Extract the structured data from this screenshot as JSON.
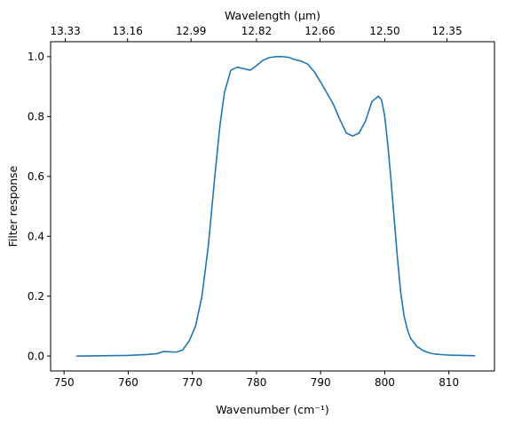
{
  "chart_data": {
    "type": "line",
    "xlabel": "Wavenumber (cm⁻¹)",
    "ylabel": "Filter response",
    "top_axis_label": "Wavelength (μm)",
    "xlim": [
      747.9,
      817.1
    ],
    "ylim": [
      -0.05,
      1.05
    ],
    "x_ticks": [
      750,
      760,
      770,
      780,
      790,
      800,
      810
    ],
    "y_ticks": [
      0.0,
      0.2,
      0.4,
      0.6,
      0.8,
      1.0
    ],
    "y_tick_labels": [
      "0.0",
      "0.2",
      "0.4",
      "0.6",
      "0.8",
      "1.0"
    ],
    "top_ticks": [
      {
        "label": "13.33",
        "x": 750.2
      },
      {
        "label": "13.16",
        "x": 759.9
      },
      {
        "label": "12.99",
        "x": 769.8
      },
      {
        "label": "12.82",
        "x": 780.0
      },
      {
        "label": "12.66",
        "x": 789.9
      },
      {
        "label": "12.50",
        "x": 800.0
      },
      {
        "label": "12.35",
        "x": 809.7
      }
    ],
    "grid": false,
    "series": [
      {
        "color": "#1f77b4",
        "x": [
          752,
          756,
          760,
          763,
          764.5,
          765.5,
          766.5,
          767.5,
          768.5,
          769.5,
          770.5,
          771.5,
          772.5,
          773.5,
          774.3,
          775,
          776,
          777,
          778,
          779,
          780,
          781,
          782,
          783,
          784,
          785,
          786,
          787,
          788,
          789,
          790,
          791,
          792,
          793,
          794,
          795,
          796,
          797,
          798,
          799,
          799.5,
          800,
          800.5,
          801,
          801.5,
          802,
          802.5,
          803,
          803.5,
          804,
          805,
          806,
          807,
          808,
          810,
          812,
          814
        ],
        "y": [
          0.0,
          0.001,
          0.002,
          0.005,
          0.008,
          0.015,
          0.014,
          0.013,
          0.02,
          0.05,
          0.1,
          0.2,
          0.37,
          0.6,
          0.77,
          0.88,
          0.955,
          0.965,
          0.96,
          0.955,
          0.97,
          0.988,
          0.997,
          1.0,
          1.0,
          0.998,
          0.99,
          0.985,
          0.975,
          0.95,
          0.915,
          0.878,
          0.84,
          0.79,
          0.745,
          0.735,
          0.745,
          0.785,
          0.85,
          0.868,
          0.855,
          0.8,
          0.7,
          0.58,
          0.45,
          0.32,
          0.21,
          0.135,
          0.09,
          0.06,
          0.032,
          0.018,
          0.01,
          0.006,
          0.003,
          0.002,
          0.001
        ]
      }
    ]
  }
}
